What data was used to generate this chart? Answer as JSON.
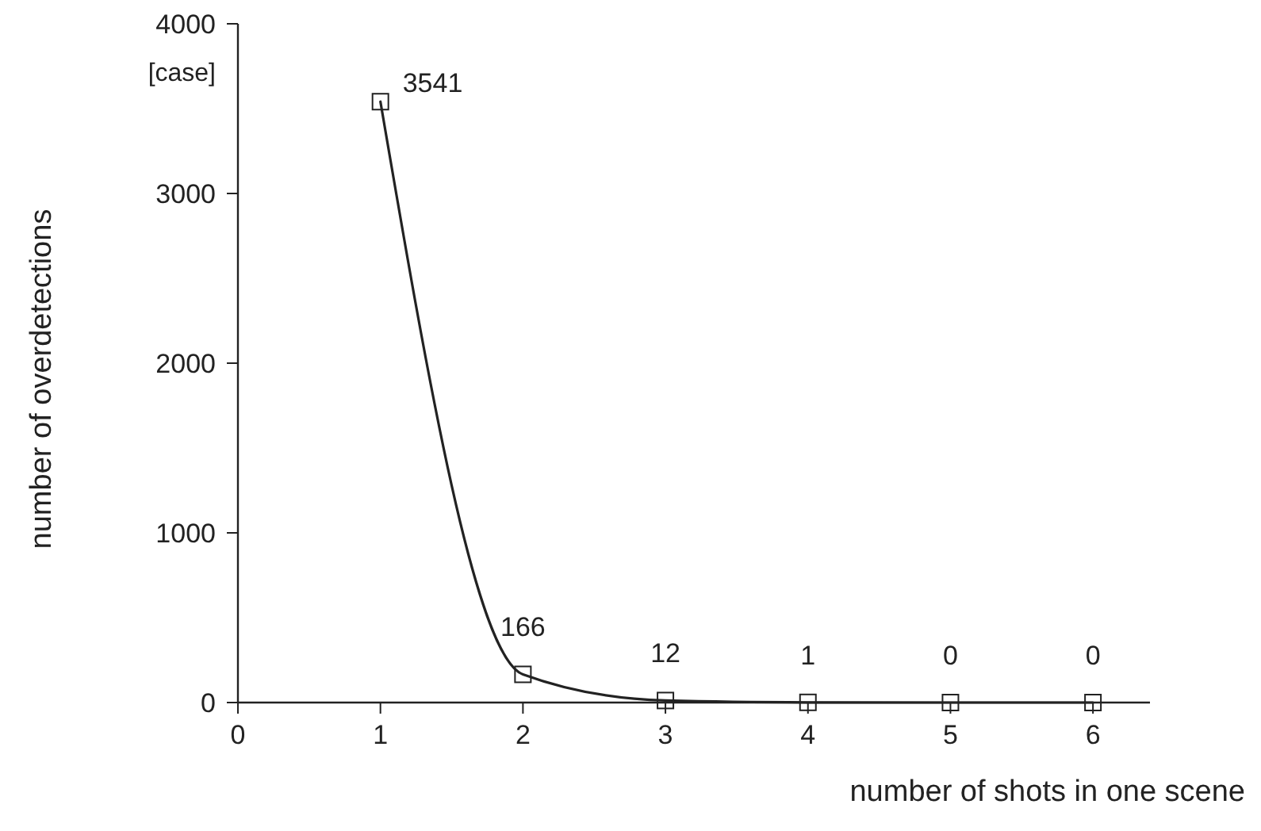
{
  "chart_data": {
    "type": "line",
    "xlabel": "number of shots in one scene",
    "ylabel": "number of overdetections",
    "annotations": [
      "[case]"
    ],
    "x": [
      1,
      2,
      3,
      4,
      5,
      6
    ],
    "values": [
      3541,
      166,
      12,
      1,
      0,
      0
    ],
    "color": "#222222",
    "xlim": [
      0,
      6.4
    ],
    "xticks": [
      0,
      1,
      2,
      3,
      4,
      5,
      6
    ],
    "ylim": [
      0,
      4000
    ],
    "yticks": [
      0,
      1000,
      2000,
      3000,
      4000
    ],
    "marker": "square",
    "data_labels": true
  }
}
